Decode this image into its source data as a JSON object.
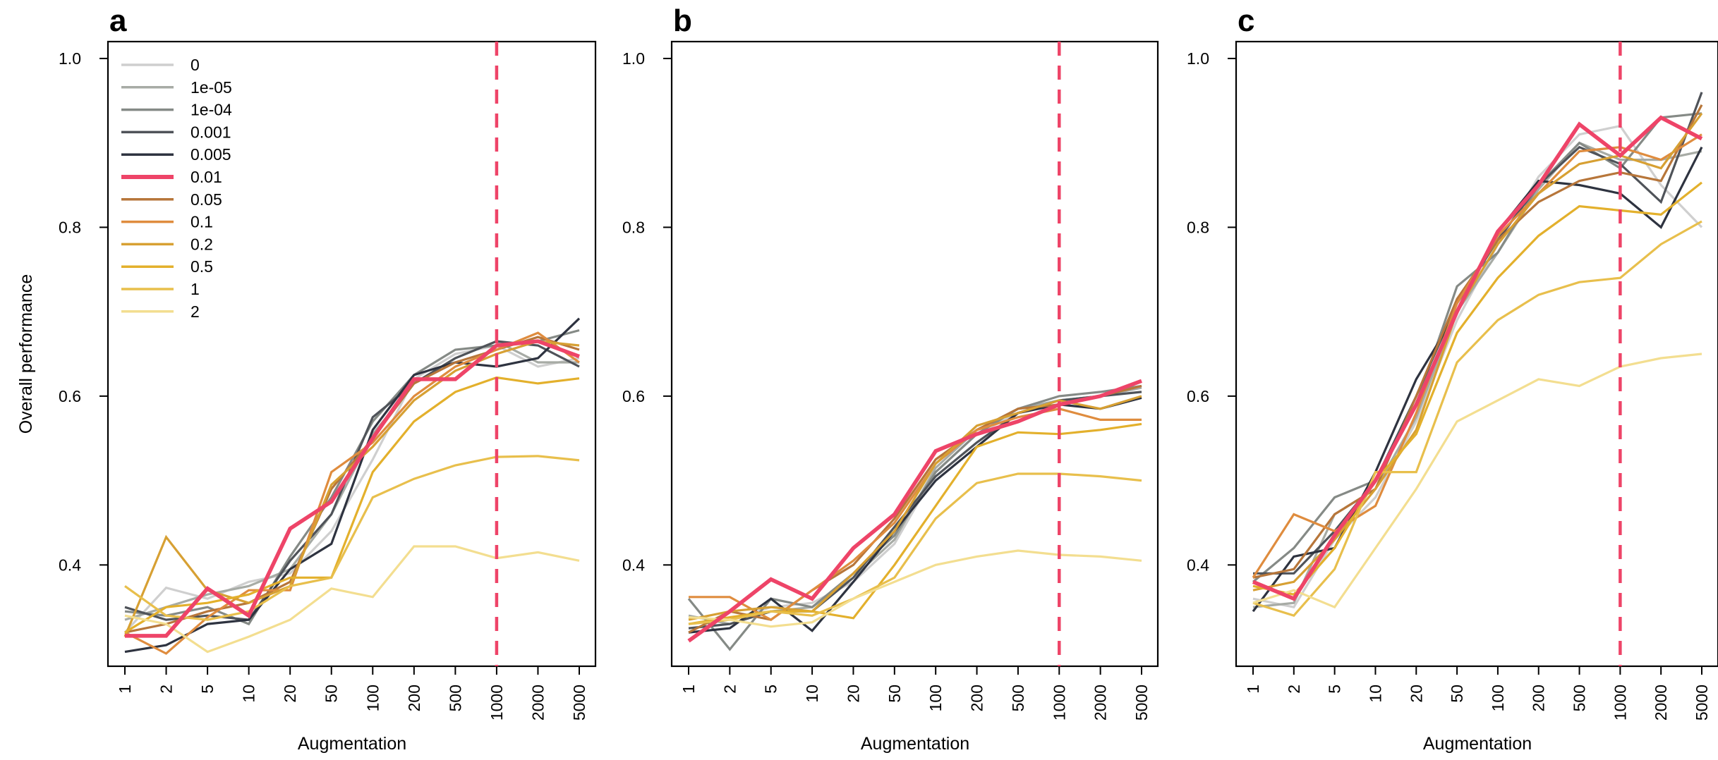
{
  "figure": {
    "ylabel_shared": "Overall performance"
  },
  "legend": [
    {
      "name": "0",
      "color": "#cfcfcf",
      "highlight": false
    },
    {
      "name": "1e-05",
      "color": "#a7aba5",
      "highlight": false
    },
    {
      "name": "1e-04",
      "color": "#858a86",
      "highlight": false
    },
    {
      "name": "0.001",
      "color": "#4f5359",
      "highlight": false
    },
    {
      "name": "0.005",
      "color": "#2e3340",
      "highlight": false
    },
    {
      "name": "0.01",
      "color": "#ee4468",
      "highlight": true
    },
    {
      "name": "0.05",
      "color": "#b7763a",
      "highlight": false
    },
    {
      "name": "0.1",
      "color": "#df8c3e",
      "highlight": false
    },
    {
      "name": "0.2",
      "color": "#d7a033",
      "highlight": false
    },
    {
      "name": "0.5",
      "color": "#e3b02c",
      "highlight": false
    },
    {
      "name": "1",
      "color": "#e8bf4c",
      "highlight": false
    },
    {
      "name": "2",
      "color": "#f3de90",
      "highlight": false
    }
  ],
  "chart_data": [
    {
      "type": "line",
      "panel": "a",
      "title": "a",
      "xlabel": "Augmentation",
      "ylabel": "Overall performance",
      "x": [
        "1",
        "2",
        "5",
        "10",
        "20",
        "50",
        "100",
        "200",
        "500",
        "1000",
        "2000",
        "5000"
      ],
      "ylim": [
        0.28,
        1.02
      ],
      "yticks": [
        "0.4",
        "0.6",
        "0.8",
        "1.0"
      ],
      "vline_at": "1000",
      "series": [
        {
          "name": "0",
          "values": [
            0.32,
            0.373,
            0.36,
            0.38,
            0.39,
            0.44,
            0.525,
            0.62,
            0.65,
            0.66,
            0.635,
            0.645
          ]
        },
        {
          "name": "1e-05",
          "values": [
            0.335,
            0.35,
            0.365,
            0.375,
            0.395,
            0.46,
            0.555,
            0.615,
            0.645,
            0.665,
            0.64,
            0.64
          ]
        },
        {
          "name": "1e-04",
          "values": [
            0.345,
            0.34,
            0.35,
            0.33,
            0.41,
            0.48,
            0.57,
            0.625,
            0.655,
            0.66,
            0.665,
            0.678
          ]
        },
        {
          "name": "0.001",
          "values": [
            0.35,
            0.335,
            0.34,
            0.335,
            0.405,
            0.46,
            0.575,
            0.615,
            0.645,
            0.665,
            0.66,
            0.635
          ]
        },
        {
          "name": "0.005",
          "values": [
            0.297,
            0.305,
            0.33,
            0.335,
            0.395,
            0.425,
            0.56,
            0.625,
            0.64,
            0.635,
            0.645,
            0.692
          ]
        },
        {
          "name": "0.01",
          "values": [
            0.316,
            0.316,
            0.372,
            0.34,
            0.443,
            0.475,
            0.55,
            0.62,
            0.62,
            0.66,
            0.665,
            0.647
          ]
        },
        {
          "name": "0.05",
          "values": [
            0.32,
            0.33,
            0.345,
            0.355,
            0.38,
            0.49,
            0.55,
            0.615,
            0.64,
            0.655,
            0.67,
            0.655
          ]
        },
        {
          "name": "0.1",
          "values": [
            0.32,
            0.295,
            0.338,
            0.37,
            0.37,
            0.51,
            0.545,
            0.6,
            0.635,
            0.655,
            0.675,
            0.64
          ]
        },
        {
          "name": "0.2",
          "values": [
            0.315,
            0.433,
            0.37,
            0.355,
            0.375,
            0.495,
            0.54,
            0.595,
            0.63,
            0.65,
            0.665,
            0.66
          ]
        },
        {
          "name": "0.5",
          "values": [
            0.32,
            0.35,
            0.355,
            0.365,
            0.385,
            0.385,
            0.51,
            0.57,
            0.605,
            0.622,
            0.615,
            0.621
          ]
        },
        {
          "name": "1",
          "values": [
            0.375,
            0.34,
            0.335,
            0.345,
            0.375,
            0.385,
            0.48,
            0.502,
            0.518,
            0.528,
            0.529,
            0.524
          ]
        },
        {
          "name": "2",
          "values": [
            0.34,
            0.33,
            0.297,
            0.315,
            0.335,
            0.372,
            0.362,
            0.422,
            0.422,
            0.408,
            0.415,
            0.405
          ]
        }
      ]
    },
    {
      "type": "line",
      "panel": "b",
      "title": "b",
      "xlabel": "Augmentation",
      "ylabel": "",
      "x": [
        "1",
        "2",
        "5",
        "10",
        "20",
        "50",
        "100",
        "200",
        "500",
        "1000",
        "2000",
        "5000"
      ],
      "ylim": [
        0.28,
        1.02
      ],
      "yticks": [
        "0.4",
        "0.6",
        "0.8",
        "1.0"
      ],
      "vline_at": "1000",
      "series": [
        {
          "name": "0",
          "values": [
            0.33,
            0.335,
            0.35,
            0.355,
            0.38,
            0.425,
            0.51,
            0.555,
            0.58,
            0.595,
            0.6,
            0.61
          ]
        },
        {
          "name": "1e-05",
          "values": [
            0.34,
            0.33,
            0.345,
            0.35,
            0.385,
            0.43,
            0.515,
            0.56,
            0.585,
            0.595,
            0.6,
            0.61
          ]
        },
        {
          "name": "1e-04",
          "values": [
            0.36,
            0.3,
            0.36,
            0.35,
            0.39,
            0.435,
            0.51,
            0.555,
            0.585,
            0.6,
            0.605,
            0.612
          ]
        },
        {
          "name": "0.001",
          "values": [
            0.325,
            0.33,
            0.345,
            0.345,
            0.385,
            0.445,
            0.505,
            0.545,
            0.58,
            0.595,
            0.6,
            0.605
          ]
        },
        {
          "name": "0.005",
          "values": [
            0.32,
            0.325,
            0.36,
            0.322,
            0.38,
            0.44,
            0.5,
            0.54,
            0.58,
            0.59,
            0.585,
            0.598
          ]
        },
        {
          "name": "0.01",
          "values": [
            0.31,
            0.345,
            0.383,
            0.36,
            0.42,
            0.46,
            0.535,
            0.555,
            0.57,
            0.59,
            0.6,
            0.618
          ]
        },
        {
          "name": "0.05",
          "values": [
            0.32,
            0.345,
            0.335,
            0.37,
            0.4,
            0.455,
            0.525,
            0.56,
            0.585,
            0.59,
            0.6,
            0.612
          ]
        },
        {
          "name": "0.1",
          "values": [
            0.362,
            0.362,
            0.335,
            0.37,
            0.405,
            0.45,
            0.52,
            0.56,
            0.575,
            0.585,
            0.572,
            0.572
          ]
        },
        {
          "name": "0.2",
          "values": [
            0.335,
            0.345,
            0.35,
            0.345,
            0.39,
            0.44,
            0.52,
            0.565,
            0.58,
            0.595,
            0.585,
            0.6
          ]
        },
        {
          "name": "0.5",
          "values": [
            0.33,
            0.338,
            0.345,
            0.345,
            0.337,
            0.4,
            0.47,
            0.54,
            0.557,
            0.555,
            0.56,
            0.567
          ]
        },
        {
          "name": "1",
          "values": [
            0.33,
            0.335,
            0.345,
            0.34,
            0.36,
            0.385,
            0.455,
            0.497,
            0.508,
            0.508,
            0.505,
            0.5
          ]
        },
        {
          "name": "2",
          "values": [
            0.338,
            0.335,
            0.327,
            0.332,
            0.36,
            0.38,
            0.4,
            0.41,
            0.417,
            0.412,
            0.41,
            0.405
          ]
        }
      ]
    },
    {
      "type": "line",
      "panel": "c",
      "title": "c",
      "xlabel": "Augmentation",
      "ylabel": "",
      "x": [
        "1",
        "2",
        "5",
        "10",
        "20",
        "50",
        "100",
        "200",
        "500",
        "1000",
        "2000",
        "5000"
      ],
      "ylim": [
        0.28,
        1.02
      ],
      "yticks": [
        "0.4",
        "0.6",
        "0.8",
        "1.0"
      ],
      "vline_at": "1000",
      "series": [
        {
          "name": "0",
          "values": [
            0.36,
            0.35,
            0.43,
            0.48,
            0.57,
            0.69,
            0.78,
            0.86,
            0.91,
            0.92,
            0.85,
            0.8
          ]
        },
        {
          "name": "1e-05",
          "values": [
            0.35,
            0.355,
            0.46,
            0.49,
            0.575,
            0.7,
            0.77,
            0.845,
            0.9,
            0.88,
            0.88,
            0.89
          ]
        },
        {
          "name": "1e-04",
          "values": [
            0.38,
            0.42,
            0.48,
            0.5,
            0.59,
            0.73,
            0.77,
            0.85,
            0.9,
            0.87,
            0.93,
            0.935
          ]
        },
        {
          "name": "0.001",
          "values": [
            0.39,
            0.39,
            0.44,
            0.5,
            0.6,
            0.71,
            0.785,
            0.85,
            0.895,
            0.875,
            0.83,
            0.96
          ]
        },
        {
          "name": "0.005",
          "values": [
            0.345,
            0.41,
            0.42,
            0.51,
            0.62,
            0.7,
            0.795,
            0.855,
            0.85,
            0.84,
            0.8,
            0.895
          ]
        },
        {
          "name": "0.01",
          "values": [
            0.38,
            0.36,
            0.435,
            0.5,
            0.59,
            0.7,
            0.795,
            0.85,
            0.922,
            0.885,
            0.93,
            0.905
          ]
        },
        {
          "name": "0.05",
          "values": [
            0.385,
            0.395,
            0.46,
            0.49,
            0.6,
            0.715,
            0.785,
            0.83,
            0.855,
            0.865,
            0.855,
            0.945
          ]
        },
        {
          "name": "0.1",
          "values": [
            0.385,
            0.46,
            0.44,
            0.47,
            0.58,
            0.71,
            0.79,
            0.84,
            0.89,
            0.895,
            0.88,
            0.91
          ]
        },
        {
          "name": "0.2",
          "values": [
            0.37,
            0.38,
            0.43,
            0.49,
            0.56,
            0.7,
            0.78,
            0.84,
            0.875,
            0.885,
            0.87,
            0.935
          ]
        },
        {
          "name": "0.5",
          "values": [
            0.375,
            0.365,
            0.42,
            0.5,
            0.555,
            0.675,
            0.74,
            0.79,
            0.825,
            0.82,
            0.815,
            0.853
          ]
        },
        {
          "name": "1",
          "values": [
            0.355,
            0.34,
            0.395,
            0.51,
            0.51,
            0.64,
            0.69,
            0.72,
            0.735,
            0.74,
            0.78,
            0.807
          ]
        },
        {
          "name": "2",
          "values": [
            0.355,
            0.37,
            0.35,
            0.42,
            0.49,
            0.57,
            0.595,
            0.62,
            0.612,
            0.635,
            0.645,
            0.65
          ]
        }
      ]
    }
  ]
}
